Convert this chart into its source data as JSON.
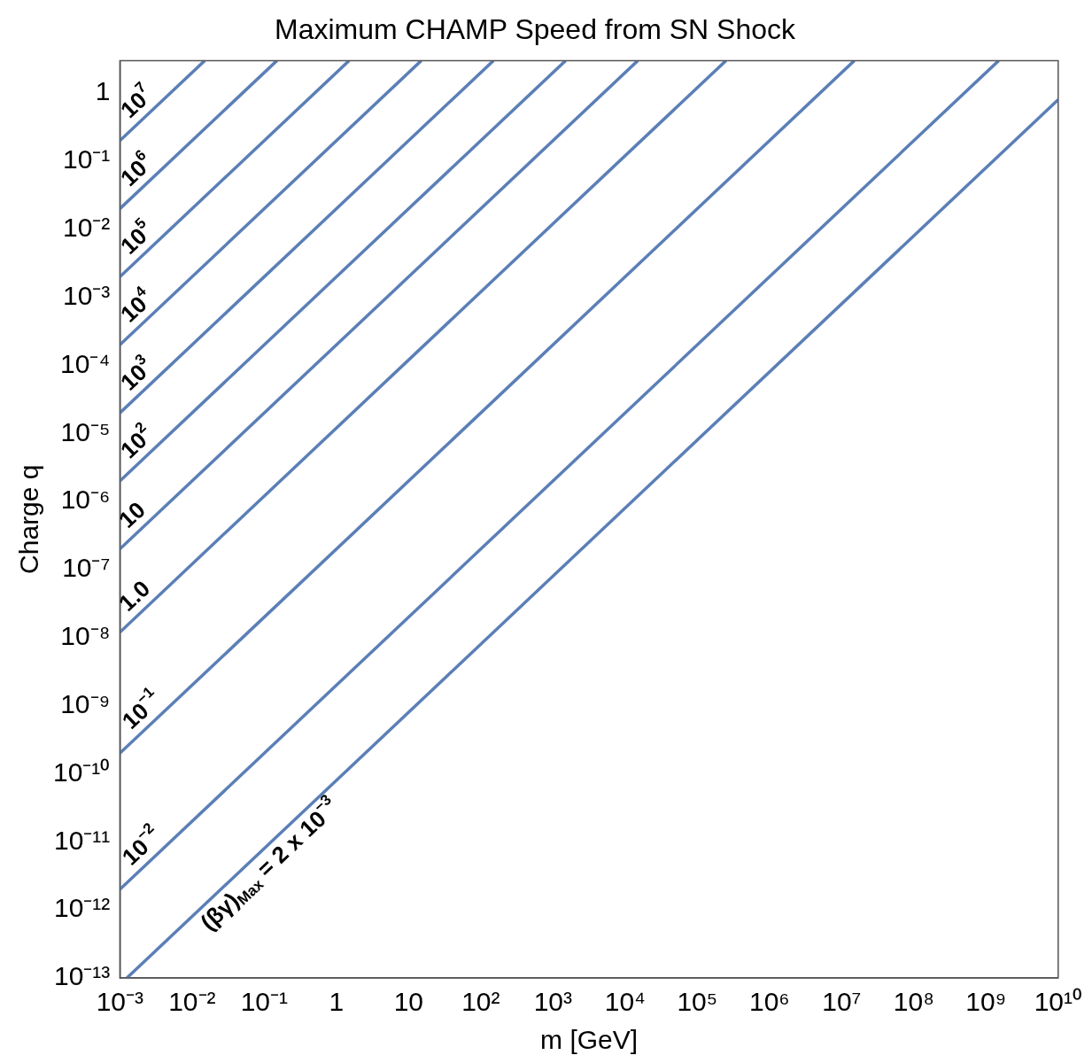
{
  "chart_data": {
    "type": "line",
    "title": "Maximum CHAMP Speed from SN Shock",
    "xlabel": "m [GeV]",
    "ylabel": "Charge q",
    "log": "xy",
    "grid": false,
    "legend": false,
    "marker": "none",
    "line_style": "solid",
    "xlim": [
      0.001,
      10000000000
    ],
    "ylim": [
      1e-13,
      3
    ],
    "xticks": [
      {
        "value": 0.001,
        "label": "10⁻³"
      },
      {
        "value": 0.01,
        "label": "10⁻²"
      },
      {
        "value": 0.1,
        "label": "10⁻¹"
      },
      1,
      10,
      {
        "value": 100,
        "label": "10²"
      },
      {
        "value": 1000,
        "label": "10³"
      },
      {
        "value": 10000,
        "label": "10⁴"
      },
      {
        "value": 100000,
        "label": "10⁵"
      },
      {
        "value": 1000000,
        "label": "10⁶"
      },
      {
        "value": 10000000,
        "label": "10⁷"
      },
      {
        "value": 100000000,
        "label": "10⁸"
      },
      {
        "value": 1000000000,
        "label": "10⁹"
      },
      {
        "value": 10000000000,
        "label": "10¹⁰"
      }
    ],
    "yticks": [
      {
        "value": 1e-13,
        "label": "10⁻¹³"
      },
      {
        "value": 1e-12,
        "label": "10⁻¹²"
      },
      {
        "value": 1e-11,
        "label": "10⁻¹¹"
      },
      {
        "value": 1e-10,
        "label": "10⁻¹⁰"
      },
      {
        "value": 1e-09,
        "label": "10⁻⁹"
      },
      {
        "value": 1e-08,
        "label": "10⁻⁸"
      },
      {
        "value": 1e-07,
        "label": "10⁻⁷"
      },
      {
        "value": 1e-06,
        "label": "10⁻⁶"
      },
      {
        "value": 1e-05,
        "label": "10⁻⁵"
      },
      {
        "value": 0.0001,
        "label": "10⁻⁴"
      },
      {
        "value": 0.001,
        "label": "10⁻³"
      },
      {
        "value": 0.01,
        "label": "10⁻²"
      },
      {
        "value": 0.1,
        "label": "10⁻¹"
      },
      1
    ],
    "series": [
      {
        "name": "10$^{7}$",
        "color": "#5b7fb6",
        "x": [
          0.001,
          0.015
        ],
        "values": [
          0.2,
          3
        ]
      },
      {
        "name": "10$^{6}$",
        "color": "#5b7fb6",
        "x": [
          0.001,
          0.15
        ],
        "values": [
          0.02,
          3
        ]
      },
      {
        "name": "10$^{5}$",
        "color": "#5b7fb6",
        "x": [
          0.001,
          1.5
        ],
        "values": [
          0.002,
          3
        ]
      },
      {
        "name": "10$^{4}$",
        "color": "#5b7fb6",
        "x": [
          0.001,
          15
        ],
        "values": [
          0.0002,
          3
        ]
      },
      {
        "name": "10$^{3}$",
        "color": "#5b7fb6",
        "x": [
          0.001,
          150
        ],
        "values": [
          2e-05,
          3
        ]
      },
      {
        "name": "10$^{2}$",
        "color": "#5b7fb6",
        "x": [
          0.001,
          1500
        ],
        "values": [
          2e-06,
          3
        ]
      },
      {
        "name": "10",
        "color": "#5b7fb6",
        "x": [
          0.001,
          15000
        ],
        "values": [
          2e-07,
          3
        ]
      },
      {
        "name": "1.0",
        "color": "#5b7fb6",
        "x": [
          0.001,
          250000
        ],
        "values": [
          1.2e-08,
          3
        ]
      },
      {
        "name": "10$^{−1}$",
        "color": "#5b7fb6",
        "x": [
          0.001,
          15000000
        ],
        "values": [
          2e-10,
          3
        ]
      },
      {
        "name": "10$^{−2}$",
        "color": "#5b7fb6",
        "x": [
          0.001,
          1500000000
        ],
        "values": [
          2e-12,
          3
        ]
      },
      {
        "name": "(βγ)$_{Max}$ = 2 x 10$^{−3}$",
        "color": "#5b7fb6",
        "x": [
          0.00125,
          10000000000
        ],
        "values": [
          1e-13,
          0.8
        ]
      }
    ]
  }
}
